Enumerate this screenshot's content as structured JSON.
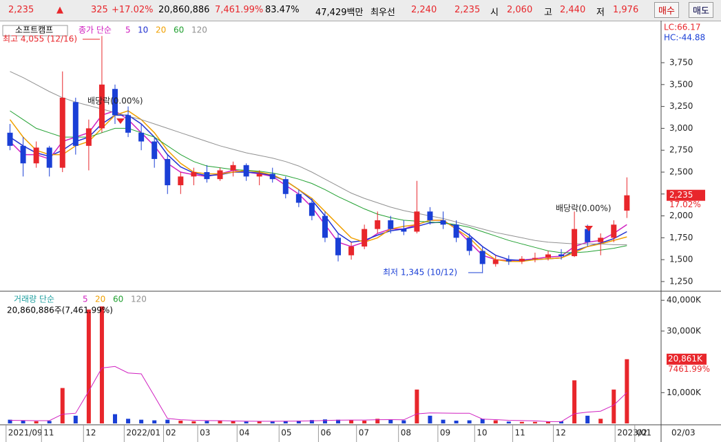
{
  "header": {
    "price": "2,235",
    "arrow": "▲",
    "change": "325",
    "change_pct": "+17.02%",
    "volume": "20,860,886",
    "volume_pct": "7,461.99%",
    "rate": "83.47%",
    "amount": "47,429백만",
    "best_label": "최우선",
    "best_ask": "2,240",
    "best_bid": "2,235",
    "open_label": "시",
    "open": "2,060",
    "high_label": "고",
    "high": "2,440",
    "low_label": "저",
    "low": "1,976",
    "buy": "매수",
    "sell": "매도"
  },
  "chart_data": [
    {
      "type": "candlestick",
      "title": "소프트캠프",
      "legend_title": "종가 단순",
      "categories": [
        null,
        null,
        null,
        null,
        null,
        null,
        null,
        null,
        null,
        null,
        null,
        null,
        null,
        null,
        null,
        null,
        null,
        null,
        null,
        null,
        null,
        null,
        null,
        null,
        null,
        null,
        null,
        null,
        null,
        null,
        null,
        null,
        null,
        null,
        null,
        null,
        null,
        null,
        null,
        null,
        null,
        null,
        null,
        null,
        null,
        null,
        null,
        null
      ],
      "open": [
        2950,
        2800,
        2600,
        2780,
        2550,
        3300,
        2800,
        3000,
        3450,
        3150,
        2950,
        2850,
        2650,
        2350,
        2450,
        2500,
        2420,
        2520,
        2580,
        2450,
        2480,
        2420,
        2250,
        2150,
        2000,
        1750,
        1550,
        1650,
        1850,
        1950,
        1850,
        1820,
        2050,
        1950,
        1900,
        1750,
        1600,
        1450,
        1500,
        1480,
        1510,
        1520,
        1560,
        1540,
        1850,
        1700,
        1750,
        2060
      ],
      "high": [
        3050,
        2900,
        2850,
        2800,
        3650,
        3350,
        3100,
        4055,
        3500,
        3250,
        3050,
        2900,
        2700,
        2500,
        2550,
        2580,
        2550,
        2620,
        2600,
        2520,
        2550,
        2450,
        2300,
        2200,
        2050,
        1800,
        1700,
        1900,
        2050,
        2000,
        1950,
        2400,
        2100,
        2050,
        1950,
        1800,
        1650,
        1550,
        1550,
        1540,
        1580,
        1600,
        1620,
        2050,
        1900,
        1800,
        1950,
        2440
      ],
      "low": [
        2750,
        2450,
        2550,
        2450,
        2500,
        2700,
        2520,
        2950,
        3050,
        2900,
        2750,
        2550,
        2250,
        2250,
        2350,
        2380,
        2400,
        2450,
        2400,
        2350,
        2380,
        2200,
        2100,
        1950,
        1700,
        1480,
        1500,
        1620,
        1800,
        1800,
        1780,
        1800,
        1900,
        1850,
        1700,
        1550,
        1345,
        1420,
        1440,
        1450,
        1470,
        1490,
        1500,
        1530,
        1650,
        1550,
        1700,
        1976
      ],
      "close": [
        2800,
        2600,
        2780,
        2550,
        3350,
        2800,
        3000,
        3500,
        3150,
        2950,
        2850,
        2650,
        2350,
        2450,
        2500,
        2420,
        2520,
        2580,
        2450,
        2480,
        2420,
        2250,
        2150,
        2000,
        1750,
        1550,
        1650,
        1850,
        1950,
        1850,
        1820,
        2050,
        1950,
        1900,
        1750,
        1600,
        1450,
        1500,
        1480,
        1510,
        1520,
        1560,
        1540,
        1850,
        1700,
        1750,
        1900,
        2235
      ],
      "up_color": "#e8262b",
      "down_color": "#1a3fd6",
      "series": [
        {
          "name": "5",
          "color": "#d020c0",
          "values": [
            2850,
            2700,
            2700,
            2650,
            2850,
            2900,
            2950,
            3150,
            3200,
            3100,
            2950,
            2800,
            2600,
            2500,
            2470,
            2450,
            2480,
            2520,
            2500,
            2480,
            2450,
            2350,
            2250,
            2100,
            1900,
            1700,
            1650,
            1700,
            1800,
            1850,
            1850,
            1900,
            1950,
            1950,
            1850,
            1700,
            1550,
            1500,
            1490,
            1495,
            1510,
            1530,
            1540,
            1650,
            1700,
            1720,
            1800,
            1900
          ]
        },
        {
          "name": "10",
          "color": "#2030d0",
          "values": [
            2900,
            2800,
            2720,
            2680,
            2750,
            2850,
            2900,
            3050,
            3150,
            3150,
            3050,
            2900,
            2700,
            2560,
            2490,
            2460,
            2470,
            2500,
            2500,
            2490,
            2460,
            2400,
            2300,
            2180,
            2000,
            1800,
            1700,
            1720,
            1780,
            1830,
            1850,
            1880,
            1920,
            1930,
            1880,
            1780,
            1650,
            1550,
            1500,
            1490,
            1500,
            1510,
            1520,
            1600,
            1650,
            1690,
            1740,
            1820
          ]
        },
        {
          "name": "20",
          "color": "#f0a000",
          "values": [
            3100,
            2900,
            2750,
            2700,
            2700,
            2800,
            2850,
            3000,
            3150,
            3200,
            3100,
            2950,
            2750,
            2600,
            2500,
            2480,
            2480,
            2500,
            2520,
            2500,
            2470,
            2400,
            2300,
            2200,
            2050,
            1900,
            1750,
            1700,
            1750,
            1850,
            1880,
            1900,
            1950,
            1950,
            1850,
            1750,
            1600,
            1500,
            1480,
            1480,
            1500,
            1510,
            1520,
            1580,
            1650,
            1680,
            1720,
            1760
          ]
        },
        {
          "name": "60",
          "color": "#20a030",
          "values": [
            3200,
            3100,
            3000,
            2950,
            2900,
            2900,
            2900,
            2950,
            3000,
            3000,
            2950,
            2900,
            2800,
            2700,
            2620,
            2570,
            2550,
            2530,
            2520,
            2510,
            2490,
            2460,
            2420,
            2370,
            2300,
            2220,
            2150,
            2080,
            2020,
            1980,
            1950,
            1940,
            1930,
            1920,
            1900,
            1870,
            1820,
            1770,
            1720,
            1680,
            1640,
            1600,
            1580,
            1580,
            1590,
            1610,
            1630,
            1660
          ]
        },
        {
          "name": "120",
          "color": "#909090",
          "values": [
            3650,
            3580,
            3500,
            3420,
            3350,
            3300,
            3260,
            3220,
            3180,
            3140,
            3100,
            3050,
            3000,
            2950,
            2900,
            2850,
            2800,
            2760,
            2720,
            2690,
            2660,
            2620,
            2570,
            2500,
            2420,
            2340,
            2260,
            2200,
            2150,
            2100,
            2060,
            2030,
            2000,
            1970,
            1930,
            1890,
            1850,
            1810,
            1780,
            1750,
            1720,
            1700,
            1690,
            1680,
            1680,
            1680,
            1670,
            1670
          ]
        }
      ],
      "ylim": [
        1163,
        4230
      ],
      "yticks": [
        {
          "value": 1250,
          "label": "1,250"
        },
        {
          "value": 1500,
          "label": "1,500"
        },
        {
          "value": 1750,
          "label": "1,750"
        },
        {
          "value": 2000,
          "label": "2,000"
        },
        {
          "value": 2250,
          "label": "2,250"
        },
        {
          "value": 2500,
          "label": "2,500"
        },
        {
          "value": 2750,
          "label": "2,750"
        },
        {
          "value": 3000,
          "label": "3,000"
        },
        {
          "value": 3250,
          "label": "3,250"
        },
        {
          "value": 3500,
          "label": "3,500"
        },
        {
          "value": 3750,
          "label": "3,750"
        }
      ],
      "annotations": {
        "high": "최고 4,055 (12/16)",
        "low": "최저 1,345 (10/12)",
        "dividend1": "배당락(0.00%)",
        "dividend2": "배당락(0.00%)",
        "lc": "LC:66.17",
        "hc": "HC:-44.88",
        "last": "2,235",
        "last_pct": "17.02%"
      }
    },
    {
      "type": "bar",
      "title": "거래량 단순",
      "values": [
        1200,
        900,
        700,
        800,
        11500,
        2500,
        37000,
        38000,
        3000,
        1500,
        1200,
        1000,
        1200,
        900,
        700,
        800,
        900,
        700,
        600,
        700,
        600,
        800,
        900,
        1100,
        1300,
        1200,
        1000,
        900,
        1500,
        1200,
        1000,
        11000,
        2500,
        1200,
        900,
        1000,
        1500,
        1000,
        600,
        500,
        500,
        600,
        700,
        14000,
        2500,
        1500,
        11000,
        20861
      ],
      "series": [
        {
          "name": "5",
          "color": "#d020c0",
          "values": [
            1000,
            950,
            900,
            900,
            3000,
            3300,
            10500,
            18000,
            18500,
            16400,
            16100,
            8900,
            1600,
            1200,
            1000,
            920,
            900,
            800,
            740,
            700,
            700,
            720,
            760,
            820,
            940,
            1060,
            1100,
            1100,
            1200,
            1220,
            1160,
            3100,
            3420,
            3360,
            3320,
            3320,
            1420,
            1240,
            1000,
            920,
            820,
            580,
            580,
            3160,
            3660,
            3980,
            5940,
            10010
          ]
        }
      ],
      "legend_other": [
        {
          "name": "20",
          "color": "#f0a000"
        },
        {
          "name": "60",
          "color": "#20a030"
        },
        {
          "name": "120",
          "color": "#909090"
        }
      ],
      "ylim": [
        0,
        42500
      ],
      "yticks": [
        {
          "value": 10000,
          "label": "10,000K"
        },
        {
          "value": 30000,
          "label": "30,000K"
        },
        {
          "value": 40000,
          "label": "40,000K"
        }
      ],
      "annotations": {
        "summary": "20,860,886주(7,461.99%)",
        "last": "20,861K",
        "last_pct": "7461.99%"
      },
      "xticks": [
        {
          "value": -0.3,
          "label": "2021/09"
        },
        {
          "value": 2.4,
          "label": "11"
        },
        {
          "value": 5.6,
          "label": "12"
        },
        {
          "value": 8.7,
          "label": "2022/01"
        },
        {
          "value": 11.7,
          "label": "02"
        },
        {
          "value": 14.3,
          "label": "03"
        },
        {
          "value": 17.3,
          "label": "04"
        },
        {
          "value": 20.5,
          "label": "05"
        },
        {
          "value": 23.5,
          "label": "06"
        },
        {
          "value": 26.4,
          "label": "07"
        },
        {
          "value": 29.6,
          "label": "08"
        },
        {
          "value": 32.6,
          "label": "09"
        },
        {
          "value": 35.4,
          "label": "10"
        },
        {
          "value": 38.3,
          "label": "11"
        },
        {
          "value": 41.4,
          "label": "12"
        },
        {
          "value": 46.1,
          "label": "2023/01"
        },
        {
          "value": 47.6,
          "label": "02"
        }
      ],
      "x_end_label": "02/03"
    }
  ]
}
